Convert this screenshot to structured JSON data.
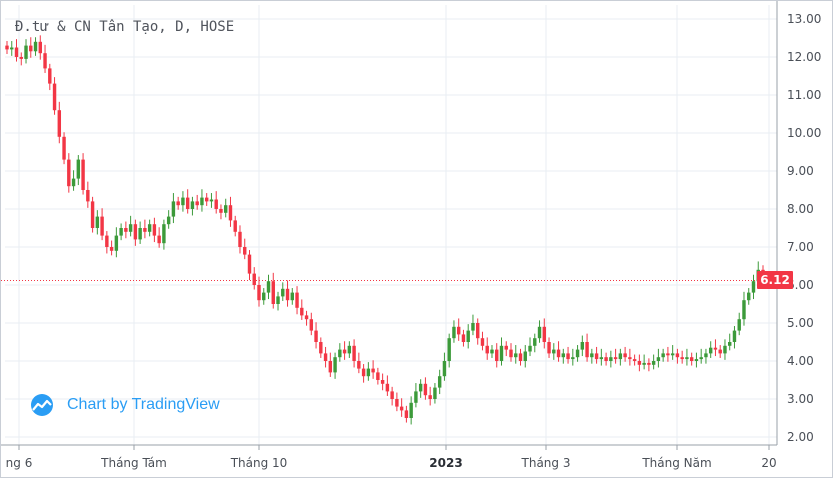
{
  "chart_data": {
    "type": "candlestick",
    "title": "Đ.tư & CN Tân Tạo, D, HOSE",
    "x_ticks": [
      {
        "label": "ng 6",
        "bold": false
      },
      {
        "label": "Tháng Tám",
        "bold": false
      },
      {
        "label": "Tháng 10",
        "bold": false
      },
      {
        "label": "2023",
        "bold": true
      },
      {
        "label": "Tháng 3",
        "bold": false
      },
      {
        "label": "Tháng Năm",
        "bold": false
      },
      {
        "label": "20",
        "bold": false
      }
    ],
    "y_ticks": [
      "13.00",
      "12.00",
      "11.00",
      "10.00",
      "9.00",
      "8.00",
      "7.00",
      "6.00",
      "5.00",
      "4.00",
      "3.00",
      "2.00"
    ],
    "ylim": [
      2.0,
      13.0
    ],
    "last_price": "6.12",
    "grid": true,
    "colors": {
      "up": "#26a69a",
      "down": "#f23645",
      "up_body": "#3c9a3a",
      "grid": "#e8edf3",
      "price_line": "#f23645"
    },
    "close_series": [
      12.2,
      12.25,
      12.0,
      11.95,
      12.3,
      12.15,
      12.4,
      12.1,
      11.7,
      11.3,
      10.6,
      9.9,
      9.3,
      8.6,
      8.8,
      9.3,
      8.5,
      8.2,
      7.5,
      7.8,
      7.3,
      7.0,
      6.9,
      7.3,
      7.5,
      7.4,
      7.6,
      7.2,
      7.5,
      7.4,
      7.6,
      7.3,
      7.1,
      7.6,
      7.8,
      8.2,
      8.1,
      8.3,
      8.0,
      8.2,
      8.1,
      8.3,
      8.2,
      8.25,
      8.0,
      7.9,
      8.1,
      7.7,
      7.4,
      7.0,
      6.8,
      6.3,
      6.0,
      5.6,
      5.8,
      6.1,
      5.5,
      5.7,
      5.9,
      5.6,
      5.8,
      5.4,
      5.2,
      5.1,
      4.8,
      4.5,
      4.2,
      4.0,
      3.7,
      4.1,
      4.3,
      4.2,
      4.4,
      4.0,
      3.8,
      3.6,
      3.8,
      3.7,
      3.5,
      3.4,
      3.2,
      3.0,
      2.8,
      2.7,
      2.5,
      2.9,
      3.2,
      3.4,
      3.1,
      3.0,
      3.3,
      3.6,
      4.0,
      4.6,
      4.9,
      4.7,
      4.5,
      4.8,
      5.0,
      4.6,
      4.4,
      4.2,
      4.3,
      4.0,
      4.4,
      4.3,
      4.1,
      4.2,
      4.0,
      4.25,
      4.4,
      4.6,
      4.9,
      4.5,
      4.2,
      4.3,
      4.1,
      4.2,
      4.05,
      4.1,
      4.3,
      4.5,
      4.1,
      4.2,
      4.05,
      4.1,
      4.0,
      4.1,
      4.05,
      4.2,
      4.1,
      4.05,
      4.0,
      3.9,
      3.95,
      3.9,
      4.0,
      4.1,
      4.2,
      4.15,
      4.2,
      4.1,
      4.05,
      4.1,
      4.0,
      4.05,
      4.1,
      4.2,
      4.35,
      4.3,
      4.2,
      4.4,
      4.5,
      4.8,
      5.1,
      5.6,
      5.8,
      6.1,
      6.4,
      6.12
    ],
    "index_range": [
      0,
      160
    ]
  }
}
